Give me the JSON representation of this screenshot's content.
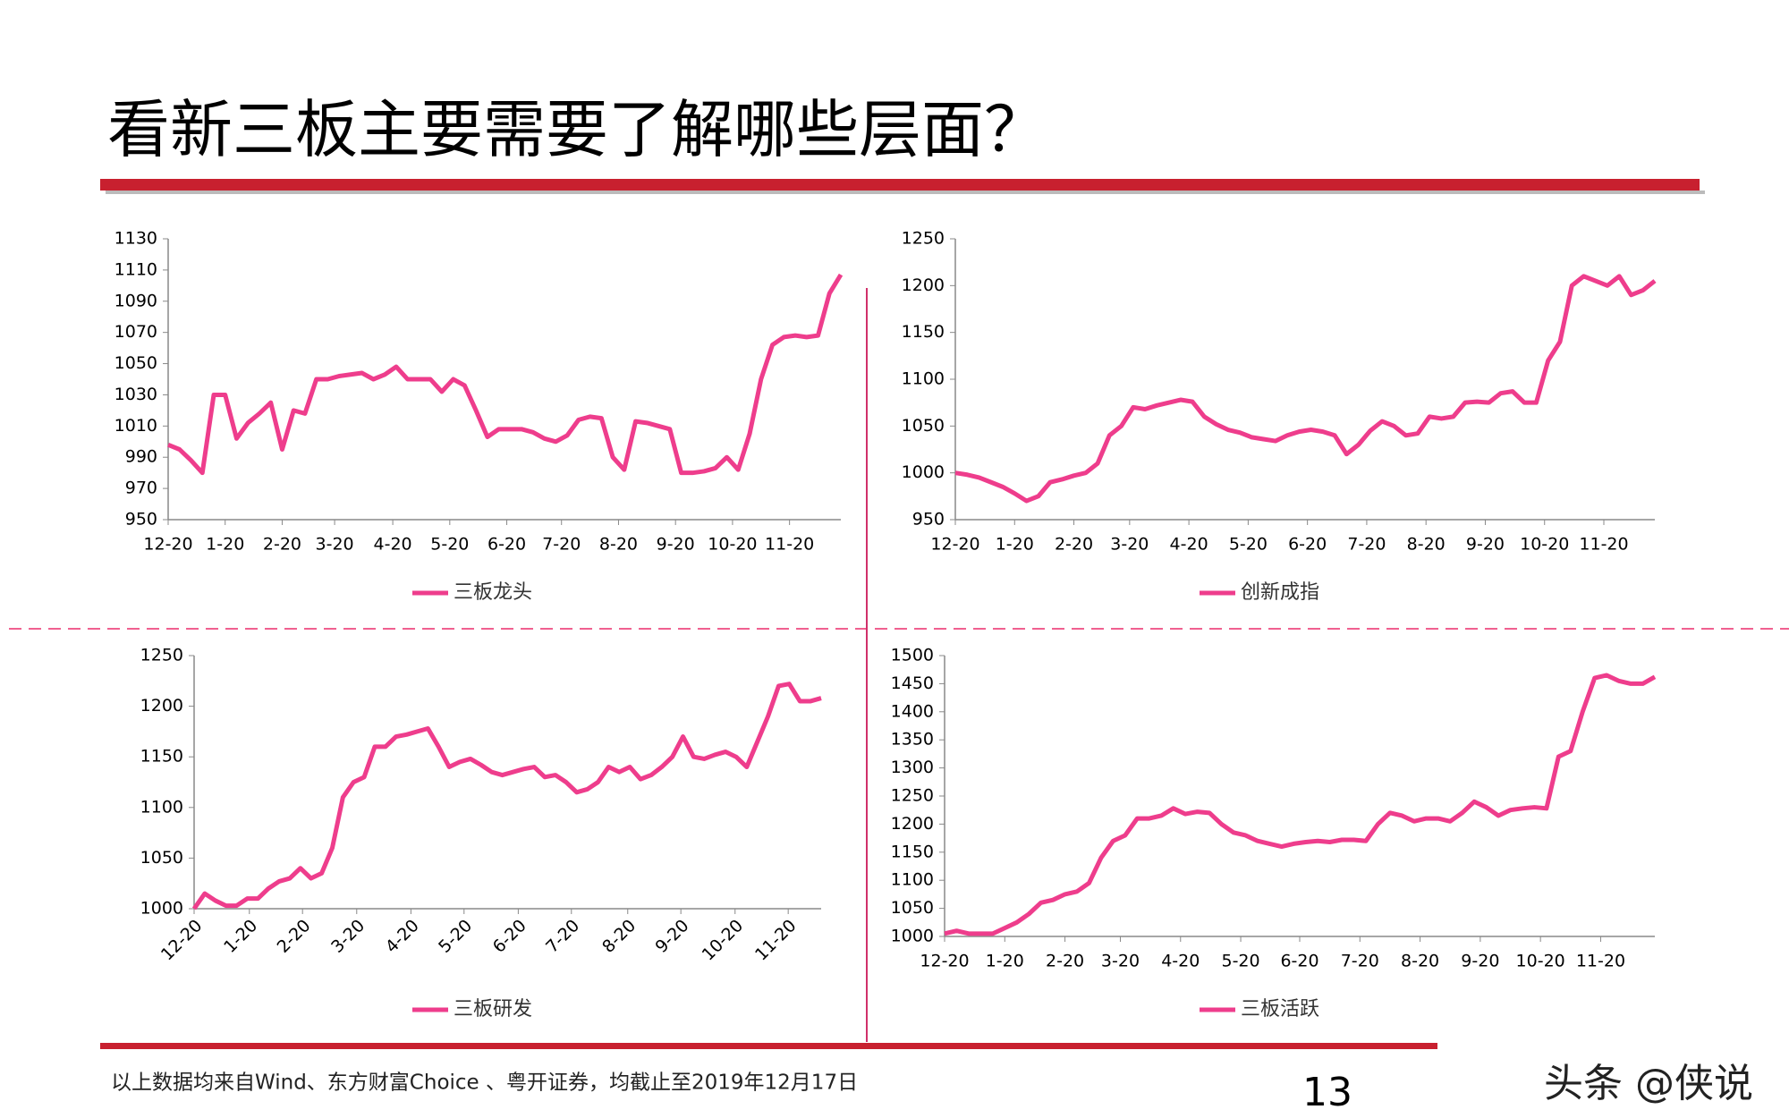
{
  "page": {
    "title": "看新三板主要需要了解哪些层面？",
    "source": "以上数据均来自Wind、东方财富Choice 、粤开证券，均截止至2019年12月17日",
    "page_number": "13",
    "watermark": "头条 @侠说"
  },
  "chart_data": [
    {
      "type": "line",
      "color": "#ee3d8c",
      "xlim": [
        0,
        59
      ],
      "ylim": [
        950,
        1130
      ],
      "yticks": [
        950,
        970,
        990,
        1010,
        1030,
        1050,
        1070,
        1090,
        1110,
        1130
      ],
      "xticks": [
        {
          "value": 0,
          "label": "12-20"
        },
        {
          "value": 5.0,
          "label": "1-20"
        },
        {
          "value": 10.0,
          "label": "2-20"
        },
        {
          "value": 14.6,
          "label": "3-20"
        },
        {
          "value": 19.7,
          "label": "4-20"
        },
        {
          "value": 24.7,
          "label": "5-20"
        },
        {
          "value": 29.7,
          "label": "6-20"
        },
        {
          "value": 34.5,
          "label": "7-20"
        },
        {
          "value": 39.5,
          "label": "8-20"
        },
        {
          "value": 44.5,
          "label": "9-20"
        },
        {
          "value": 49.5,
          "label": "10-20"
        },
        {
          "value": 54.5,
          "label": "11-20"
        }
      ],
      "series": [
        {
          "name": "三板龙头",
          "color": "#ee3d8c",
          "values": [
            998,
            995,
            988,
            980,
            1030,
            1030,
            1002,
            1012,
            1018,
            1025,
            995,
            1020,
            1018,
            1040,
            1040,
            1042,
            1043,
            1044,
            1040,
            1043,
            1048,
            1040,
            1040,
            1040,
            1032,
            1040,
            1036,
            1020,
            1003,
            1008,
            1008,
            1008,
            1006,
            1002,
            1000,
            1004,
            1014,
            1016,
            1015,
            990,
            982,
            1013,
            1012,
            1010,
            1008,
            980,
            980,
            981,
            983,
            990,
            982,
            1005,
            1040,
            1062,
            1067,
            1068,
            1067,
            1068,
            1095,
            1107
          ]
        }
      ]
    },
    {
      "type": "line",
      "color": "#ee3d8c",
      "xlim": [
        0,
        59
      ],
      "ylim": [
        950,
        1250
      ],
      "yticks": [
        950,
        1000,
        1050,
        1100,
        1150,
        1200,
        1250
      ],
      "xticks": [
        {
          "value": 0,
          "label": "12-20"
        },
        {
          "value": 5.0,
          "label": "1-20"
        },
        {
          "value": 10.0,
          "label": "2-20"
        },
        {
          "value": 14.7,
          "label": "3-20"
        },
        {
          "value": 19.7,
          "label": "4-20"
        },
        {
          "value": 24.7,
          "label": "5-20"
        },
        {
          "value": 29.7,
          "label": "6-20"
        },
        {
          "value": 34.7,
          "label": "7-20"
        },
        {
          "value": 39.7,
          "label": "8-20"
        },
        {
          "value": 44.7,
          "label": "9-20"
        },
        {
          "value": 49.7,
          "label": "10-20"
        },
        {
          "value": 54.7,
          "label": "11-20"
        }
      ],
      "series": [
        {
          "name": "创新成指",
          "color": "#ee3d8c",
          "values": [
            1000,
            998,
            995,
            990,
            985,
            978,
            970,
            975,
            990,
            993,
            997,
            1000,
            1010,
            1040,
            1050,
            1070,
            1068,
            1072,
            1075,
            1078,
            1076,
            1060,
            1052,
            1046,
            1043,
            1038,
            1036,
            1034,
            1040,
            1044,
            1046,
            1044,
            1040,
            1020,
            1030,
            1045,
            1055,
            1050,
            1040,
            1042,
            1060,
            1058,
            1060,
            1075,
            1076,
            1075,
            1085,
            1087,
            1075,
            1075,
            1120,
            1140,
            1200,
            1210,
            1205,
            1200,
            1210,
            1190,
            1195,
            1205
          ]
        }
      ]
    },
    {
      "type": "line",
      "color": "#ee3d8c",
      "rotated_xlabels": true,
      "xlim": [
        0,
        59
      ],
      "ylim": [
        1000,
        1250
      ],
      "yticks": [
        1000,
        1050,
        1100,
        1150,
        1200,
        1250
      ],
      "xticks": [
        {
          "value": 0,
          "label": "12-20"
        },
        {
          "value": 5.2,
          "label": "1-20"
        },
        {
          "value": 10.2,
          "label": "2-20"
        },
        {
          "value": 15.3,
          "label": "3-20"
        },
        {
          "value": 20.4,
          "label": "4-20"
        },
        {
          "value": 25.4,
          "label": "5-20"
        },
        {
          "value": 30.5,
          "label": "6-20"
        },
        {
          "value": 35.5,
          "label": "7-20"
        },
        {
          "value": 40.8,
          "label": "8-20"
        },
        {
          "value": 45.8,
          "label": "9-20"
        },
        {
          "value": 50.9,
          "label": "10-20"
        },
        {
          "value": 55.9,
          "label": "11-20"
        }
      ],
      "series": [
        {
          "name": "三板研发",
          "color": "#ee3d8c",
          "values": [
            1000,
            1015,
            1008,
            1003,
            1003,
            1010,
            1010,
            1020,
            1027,
            1030,
            1040,
            1030,
            1035,
            1060,
            1110,
            1125,
            1130,
            1160,
            1160,
            1170,
            1172,
            1175,
            1178,
            1160,
            1140,
            1145,
            1148,
            1142,
            1135,
            1132,
            1135,
            1138,
            1140,
            1130,
            1132,
            1125,
            1115,
            1118,
            1125,
            1140,
            1135,
            1140,
            1128,
            1132,
            1140,
            1150,
            1170,
            1150,
            1148,
            1152,
            1155,
            1150,
            1140,
            1165,
            1190,
            1220,
            1222,
            1205,
            1205,
            1208
          ]
        }
      ]
    },
    {
      "type": "line",
      "color": "#ee3d8c",
      "xlim": [
        0,
        59
      ],
      "ylim": [
        1000,
        1500
      ],
      "yticks": [
        1000,
        1050,
        1100,
        1150,
        1200,
        1250,
        1300,
        1350,
        1400,
        1450,
        1500
      ],
      "xticks": [
        {
          "value": 0,
          "label": "12-20"
        },
        {
          "value": 5.0,
          "label": "1-20"
        },
        {
          "value": 10.0,
          "label": "2-20"
        },
        {
          "value": 14.6,
          "label": "3-20"
        },
        {
          "value": 19.6,
          "label": "4-20"
        },
        {
          "value": 24.6,
          "label": "5-20"
        },
        {
          "value": 29.5,
          "label": "6-20"
        },
        {
          "value": 34.5,
          "label": "7-20"
        },
        {
          "value": 39.5,
          "label": "8-20"
        },
        {
          "value": 44.5,
          "label": "9-20"
        },
        {
          "value": 49.5,
          "label": "10-20"
        },
        {
          "value": 54.5,
          "label": "11-20"
        }
      ],
      "series": [
        {
          "name": "三板活跃",
          "color": "#ee3d8c",
          "values": [
            1005,
            1010,
            1005,
            1005,
            1005,
            1015,
            1025,
            1040,
            1060,
            1065,
            1075,
            1080,
            1095,
            1140,
            1170,
            1180,
            1210,
            1210,
            1215,
            1228,
            1218,
            1222,
            1220,
            1200,
            1185,
            1180,
            1170,
            1165,
            1160,
            1165,
            1168,
            1170,
            1168,
            1172,
            1172,
            1170,
            1200,
            1220,
            1215,
            1205,
            1210,
            1210,
            1205,
            1220,
            1240,
            1230,
            1215,
            1225,
            1228,
            1230,
            1228,
            1320,
            1330,
            1400,
            1460,
            1465,
            1455,
            1450,
            1450,
            1462
          ]
        }
      ]
    }
  ]
}
